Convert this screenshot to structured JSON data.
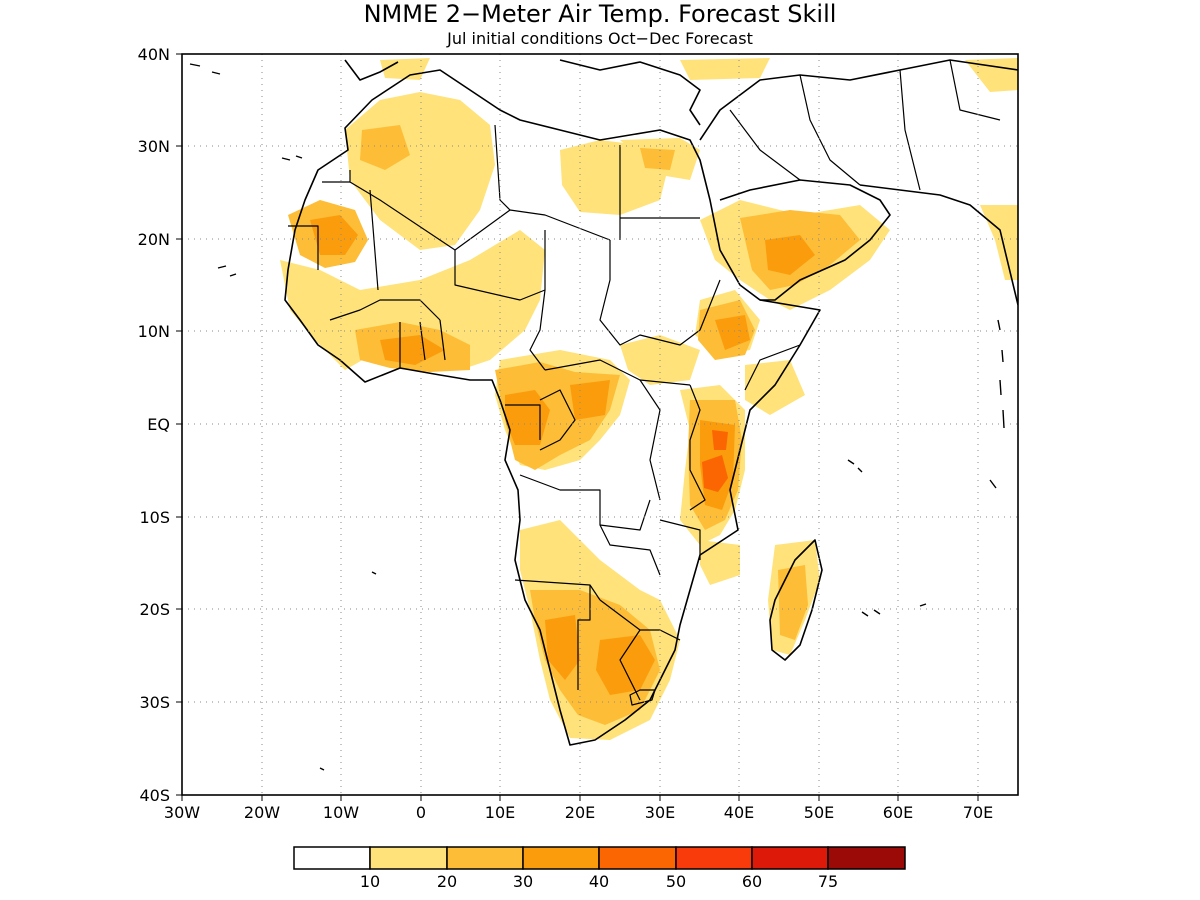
{
  "title": "NMME 2−Meter Air Temp. Forecast Skill",
  "subtitle": "Jul initial conditions   Oct−Dec Forecast",
  "map": {
    "lon_range": [
      -30,
      75
    ],
    "lat_range": [
      -40,
      40
    ],
    "lat_labels": [
      "40N",
      "30N",
      "20N",
      "10N",
      "EQ",
      "10S",
      "20S",
      "30S",
      "40S"
    ],
    "lon_labels": [
      "30W",
      "20W",
      "10W",
      "0",
      "10E",
      "20E",
      "30E",
      "40E",
      "50E",
      "60E",
      "70E"
    ],
    "grid": "dotted"
  },
  "colorbar": {
    "colors": [
      "#ffffff",
      "#ffe27a",
      "#fdbd37",
      "#fb9c0c",
      "#fb6603",
      "#f93a0a",
      "#dd1a0a",
      "#9c0a08"
    ],
    "labels": [
      "10",
      "20",
      "30",
      "40",
      "50",
      "60",
      "75"
    ]
  }
}
